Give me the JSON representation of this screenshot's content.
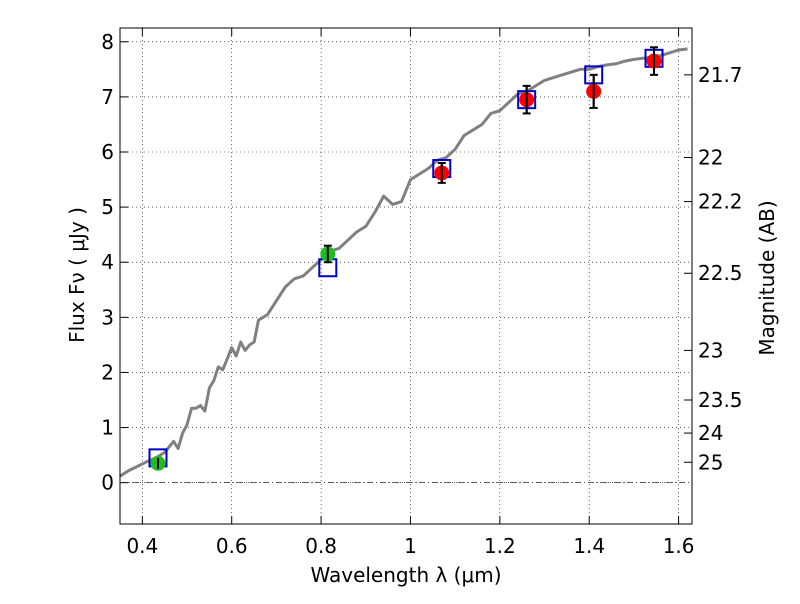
{
  "chart_data": {
    "type": "line",
    "title": "",
    "xlabel": "Wavelength  λ (μm)",
    "ylabel": "Flux  Fν  ( μJy )",
    "y2label": "Magnitude (AB)",
    "xlim": [
      0.35,
      1.63
    ],
    "ylim": [
      -0.75,
      8.25
    ],
    "grid": true,
    "xticks": [
      0.4,
      0.6,
      0.8,
      1.0,
      1.2,
      1.4,
      1.6
    ],
    "xtick_labels": [
      "0.4",
      "0.6",
      "0.8",
      "1",
      "1.2",
      "1.4",
      "1.6"
    ],
    "yticks": [
      0,
      1,
      2,
      3,
      4,
      5,
      6,
      7,
      8
    ],
    "ytick_labels": [
      "0",
      "1",
      "2",
      "3",
      "4",
      "5",
      "6",
      "7",
      "8"
    ],
    "y2_ticks": [
      {
        "label": "21.7",
        "flux": 7.4
      },
      {
        "label": "22",
        "flux": 5.9
      },
      {
        "label": "22.2",
        "flux": 5.1
      },
      {
        "label": "22.5",
        "flux": 3.8
      },
      {
        "label": "23",
        "flux": 2.4
      },
      {
        "label": "23.5",
        "flux": 1.5
      },
      {
        "label": "24",
        "flux": 0.9
      },
      {
        "label": "25",
        "flux": 0.37
      }
    ],
    "zero_line": 0,
    "series": [
      {
        "kind": "model_spectrum",
        "color": "#808080",
        "x": [
          0.35,
          0.37,
          0.39,
          0.41,
          0.43,
          0.45,
          0.47,
          0.48,
          0.49,
          0.5,
          0.51,
          0.52,
          0.53,
          0.54,
          0.55,
          0.56,
          0.57,
          0.58,
          0.59,
          0.6,
          0.61,
          0.62,
          0.63,
          0.64,
          0.65,
          0.66,
          0.68,
          0.7,
          0.72,
          0.74,
          0.76,
          0.78,
          0.8,
          0.82,
          0.84,
          0.86,
          0.88,
          0.9,
          0.92,
          0.94,
          0.96,
          0.98,
          1.0,
          1.02,
          1.04,
          1.06,
          1.08,
          1.1,
          1.12,
          1.14,
          1.16,
          1.18,
          1.2,
          1.22,
          1.24,
          1.26,
          1.28,
          1.3,
          1.32,
          1.34,
          1.36,
          1.38,
          1.4,
          1.42,
          1.44,
          1.46,
          1.48,
          1.5,
          1.52,
          1.54,
          1.56,
          1.58,
          1.6,
          1.62
        ],
        "values": [
          0.12,
          0.22,
          0.3,
          0.38,
          0.45,
          0.55,
          0.75,
          0.62,
          0.9,
          1.05,
          1.35,
          1.35,
          1.4,
          1.3,
          1.72,
          1.85,
          2.1,
          2.05,
          2.25,
          2.45,
          2.3,
          2.55,
          2.4,
          2.5,
          2.55,
          2.95,
          3.05,
          3.3,
          3.55,
          3.7,
          3.75,
          3.9,
          4.05,
          4.2,
          4.25,
          4.4,
          4.55,
          4.65,
          4.9,
          5.2,
          5.05,
          5.1,
          5.5,
          5.6,
          5.7,
          5.85,
          5.9,
          6.05,
          6.3,
          6.4,
          6.5,
          6.7,
          6.75,
          6.9,
          7.05,
          7.1,
          7.2,
          7.3,
          7.35,
          7.4,
          7.45,
          7.5,
          7.5,
          7.55,
          7.58,
          7.6,
          7.65,
          7.68,
          7.7,
          7.72,
          7.75,
          7.8,
          7.85,
          7.87
        ]
      },
      {
        "kind": "model_photometry",
        "marker": "open-square",
        "color": "#0000cc",
        "x": [
          0.435,
          0.815,
          1.07,
          1.26,
          1.41,
          1.545
        ],
        "values": [
          0.45,
          3.9,
          5.7,
          6.95,
          7.4,
          7.7
        ]
      },
      {
        "kind": "observed_optical",
        "marker": "circle",
        "color": "#22bb22",
        "x": [
          0.435,
          0.815
        ],
        "values": [
          0.35,
          4.15
        ],
        "errors": [
          0.1,
          0.15
        ]
      },
      {
        "kind": "observed_nir",
        "marker": "circle",
        "color": "#ff0000",
        "x": [
          1.07,
          1.26,
          1.41,
          1.545
        ],
        "values": [
          5.62,
          6.95,
          7.1,
          7.65
        ],
        "errors": [
          0.18,
          0.25,
          0.3,
          0.25
        ]
      }
    ]
  }
}
